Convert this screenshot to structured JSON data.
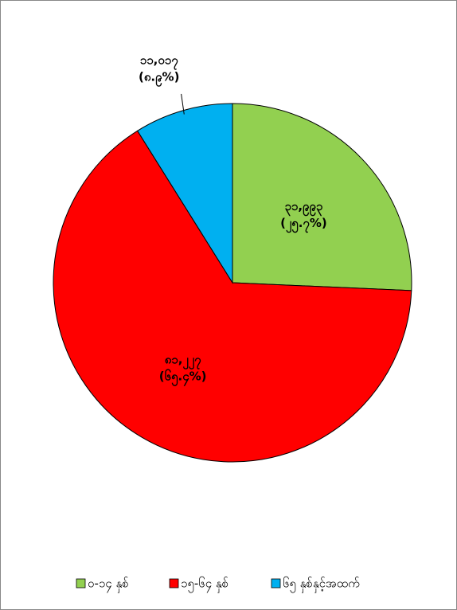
{
  "chart_data": {
    "type": "pie",
    "categories": [
      "၀-၁၄ နှစ်",
      "၁၅-၆၄ နှစ်",
      "၆၅ နှစ်နှင့်အထက်"
    ],
    "values": [
      25.7,
      65.4,
      8.9
    ],
    "value_labels": [
      "(၂၅.၇%)",
      "(၆၅.၄%)",
      "(၈.၉%)"
    ],
    "counts": [
      31993,
      81227,
      11017
    ],
    "count_labels": [
      "၃၁,၉၉၃",
      "၈၁,၂၂၇",
      "၁၁,၀၁၇"
    ],
    "colors": [
      "#92d050",
      "#ff0000",
      "#00b0f0"
    ],
    "legend": "bottom"
  }
}
